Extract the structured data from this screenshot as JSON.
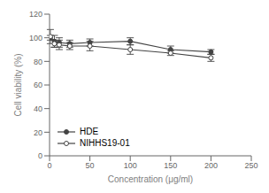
{
  "chart_data": {
    "type": "line",
    "xlabel": "Concentration (μg/ml)",
    "ylabel": "Cell viability (%)",
    "x": [
      1,
      6,
      12,
      25,
      50,
      100,
      150,
      200
    ],
    "series": [
      {
        "name": "HDE",
        "color": "#444444",
        "marker": "circle",
        "line_style": "solid",
        "values": [
          100,
          97,
          96,
          95,
          96,
          97,
          90,
          88
        ],
        "yerr": [
          2,
          5,
          4,
          3,
          3,
          3,
          3,
          2
        ]
      },
      {
        "name": "NIHHS19-01",
        "color": "#444444",
        "marker": "open_circle",
        "line_style": "solid",
        "values": [
          101,
          95,
          94,
          93,
          93,
          90,
          87,
          83
        ],
        "yerr": [
          6,
          3,
          4,
          3,
          4,
          4,
          2,
          3
        ]
      }
    ],
    "xlim": [
      0,
      250
    ],
    "ylim": [
      0,
      120
    ],
    "xticks": [
      0,
      50,
      100,
      150,
      200,
      250
    ],
    "yticks": [
      0,
      20,
      40,
      60,
      80,
      100,
      120
    ],
    "grid": false,
    "legend": "lower left"
  }
}
